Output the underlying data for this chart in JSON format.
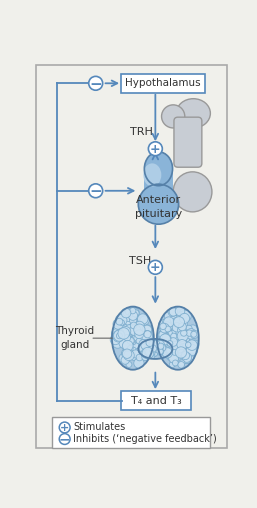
{
  "bg_color": "#f0f0eb",
  "arrow_color": "#5588bb",
  "text_color": "#333333",
  "hypothalamus_label": "Hypothalamus",
  "trh_label": "TRH",
  "anterior_pituitary_label": "Anterior\npituitary",
  "tsh_label": "TSH",
  "thyroid_label": "Thyroid\ngland",
  "t4t3_label": "T₄ and T₃",
  "stimulates_label": "Stimulates",
  "inhibits_label": "Inhibits (‘negative feedback’)",
  "pituitary_blue": "#8ab4d8",
  "pituitary_light": "#b8d4ea",
  "posterior_gray": "#c8cdd4",
  "thyroid_blue": "#aac8e0",
  "thyroid_light": "#c8dff0",
  "thyroid_cell_edge": "#7aabcc"
}
